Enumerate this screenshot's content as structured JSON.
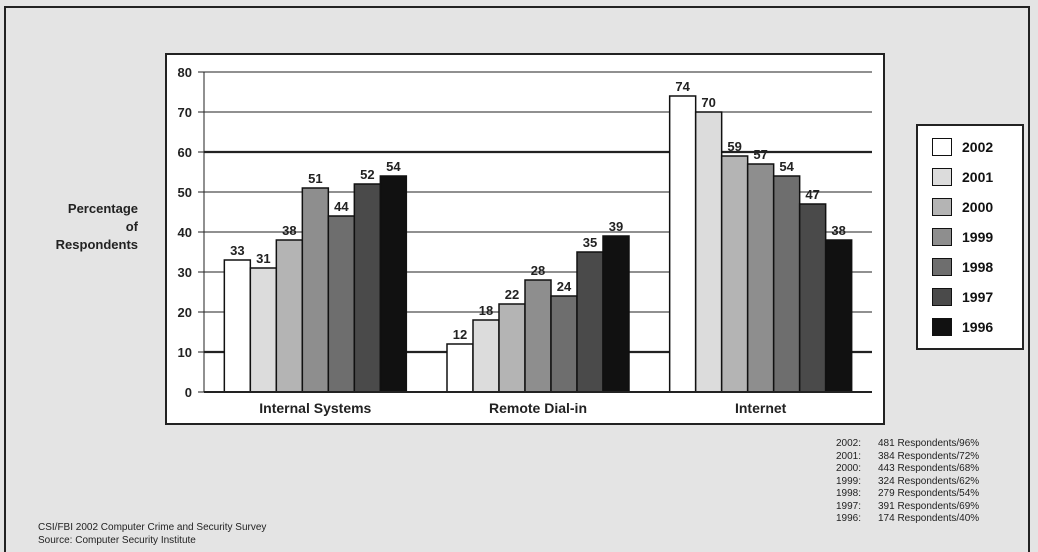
{
  "chart_data": {
    "type": "bar",
    "ylabel_lines": [
      "Percentage",
      "of",
      "Respondents"
    ],
    "categories": [
      "Internal Systems",
      "Remote Dial-in",
      "Internet"
    ],
    "ylim": [
      0,
      80
    ],
    "yticks": [
      "0",
      "10",
      "20",
      "30",
      "40",
      "50",
      "60",
      "70",
      "80"
    ],
    "grid": true,
    "legend_position": "right",
    "series": [
      {
        "name": "2002",
        "values": [
          33,
          12,
          74
        ],
        "color": "#ffffff"
      },
      {
        "name": "2001",
        "values": [
          31,
          18,
          70
        ],
        "color": "#dcdcdc"
      },
      {
        "name": "2000",
        "values": [
          38,
          22,
          59
        ],
        "color": "#b4b4b4"
      },
      {
        "name": "1999",
        "values": [
          51,
          28,
          57
        ],
        "color": "#8e8e8e"
      },
      {
        "name": "1998",
        "values": [
          44,
          24,
          54
        ],
        "color": "#6e6e6e"
      },
      {
        "name": "1997",
        "values": [
          52,
          35,
          47
        ],
        "color": "#4a4a4a"
      },
      {
        "name": "1996",
        "values": [
          54,
          39,
          38
        ],
        "color": "#111111"
      }
    ]
  },
  "respondents": [
    {
      "year": "2002:",
      "text": "481 Respondents/96%"
    },
    {
      "year": "2001:",
      "text": "384 Respondents/72%"
    },
    {
      "year": "2000:",
      "text": "443 Respondents/68%"
    },
    {
      "year": "1999:",
      "text": "324 Respondents/62%"
    },
    {
      "year": "1998:",
      "text": "279 Respondents/54%"
    },
    {
      "year": "1997:",
      "text": "391 Respondents/69%"
    },
    {
      "year": "1996:",
      "text": "174 Respondents/40%"
    }
  ],
  "source": {
    "line1": "CSI/FBI 2002 Computer Crime and Security Survey",
    "line2": "Source: Computer Security Institute"
  }
}
